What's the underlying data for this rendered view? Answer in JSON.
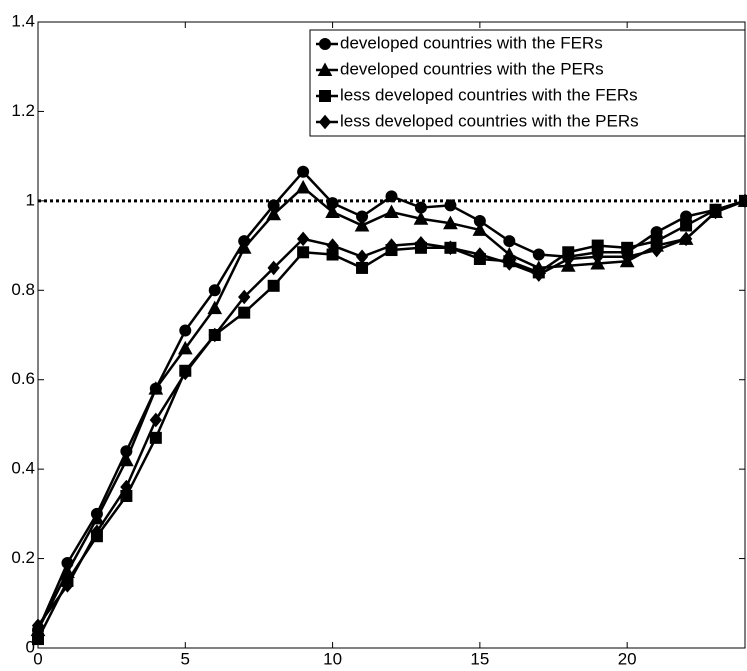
{
  "chart_data": {
    "type": "line",
    "x": [
      0,
      1,
      2,
      3,
      4,
      5,
      6,
      7,
      8,
      9,
      10,
      11,
      12,
      13,
      14,
      15,
      16,
      17,
      18,
      19,
      20,
      21,
      22,
      23,
      24
    ],
    "series": [
      {
        "name": "developed countries with the FERs",
        "color": "#000000",
        "marker": "circle",
        "values": [
          0.04,
          0.19,
          0.3,
          0.44,
          0.58,
          0.71,
          0.8,
          0.91,
          0.99,
          1.065,
          0.995,
          0.965,
          1.01,
          0.985,
          0.99,
          0.955,
          0.91,
          0.88,
          0.875,
          0.885,
          0.885,
          0.93,
          0.965,
          0.98,
          1.0
        ]
      },
      {
        "name": "developed countries with the PERs",
        "color": "#000000",
        "marker": "triangle",
        "values": [
          0.04,
          0.17,
          0.29,
          0.42,
          0.58,
          0.67,
          0.76,
          0.895,
          0.97,
          1.03,
          0.975,
          0.945,
          0.975,
          0.96,
          0.95,
          0.935,
          0.88,
          0.85,
          0.855,
          0.86,
          0.865,
          0.9,
          0.915,
          0.975,
          1.0
        ]
      },
      {
        "name": "less developed countries with the FERs",
        "color": "#000000",
        "marker": "square",
        "values": [
          0.02,
          0.15,
          0.25,
          0.34,
          0.47,
          0.62,
          0.7,
          0.75,
          0.81,
          0.885,
          0.88,
          0.85,
          0.89,
          0.895,
          0.895,
          0.87,
          0.865,
          0.84,
          0.885,
          0.9,
          0.895,
          0.91,
          0.945,
          0.98,
          1.0
        ]
      },
      {
        "name": "less developed countries with the PERs",
        "color": "#000000",
        "marker": "diamond",
        "values": [
          0.05,
          0.14,
          0.26,
          0.36,
          0.51,
          0.615,
          0.7,
          0.785,
          0.85,
          0.915,
          0.9,
          0.875,
          0.9,
          0.905,
          0.895,
          0.88,
          0.86,
          0.835,
          0.87,
          0.875,
          0.875,
          0.89,
          0.915,
          0.975,
          1.0
        ]
      }
    ],
    "reference_line": 1,
    "xlim": [
      0,
      24
    ],
    "xticks": [
      0,
      5,
      10,
      15,
      20
    ],
    "ylim": [
      0,
      1.4
    ],
    "yticks": [
      0,
      0.2,
      0.4,
      0.6,
      0.8,
      1,
      1.2,
      1.4
    ],
    "grid": false,
    "legend": "upper right"
  }
}
